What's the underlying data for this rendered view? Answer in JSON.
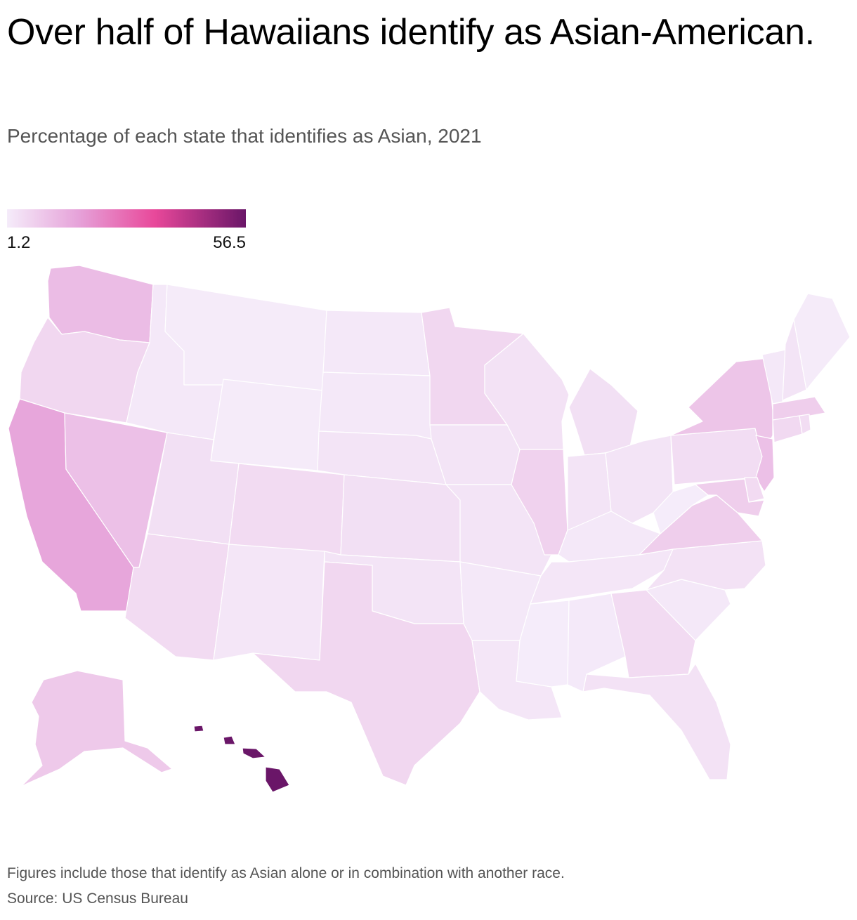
{
  "header": {
    "title": "Over half of Hawaiians identify as Asian-American.",
    "subtitle": "Percentage of each state that identifies as Asian, 2021"
  },
  "legend": {
    "min_label": "1.2",
    "max_label": "56.5",
    "min": 1.2,
    "max": 56.5,
    "color_stops": [
      "#f5ecfa",
      "#e6a2d9",
      "#e8489a",
      "#6a1668"
    ]
  },
  "chart_data": {
    "type": "choropleth",
    "title": "Over half of Hawaiians identify as Asian-American.",
    "subtitle": "Percentage of each state that identifies as Asian, 2021",
    "unit": "percent",
    "range": [
      1.2,
      56.5
    ],
    "states": {
      "WA": 12,
      "OR": 6,
      "CA": 17,
      "NV": 11,
      "ID": 2,
      "MT": 1.5,
      "WY": 1.5,
      "UT": 4,
      "AZ": 5,
      "CO": 5,
      "NM": 2.5,
      "ND": 2,
      "SD": 2,
      "NE": 3,
      "KS": 4,
      "OK": 3,
      "TX": 6,
      "MN": 6,
      "IA": 3,
      "MO": 3,
      "AR": 2,
      "LA": 2.5,
      "WI": 3.5,
      "IL": 7,
      "MI": 4,
      "IN": 3,
      "OH": 3,
      "KY": 2,
      "TN": 2.5,
      "MS": 1.2,
      "AL": 1.8,
      "GA": 5,
      "FL": 3.5,
      "SC": 2,
      "NC": 3.5,
      "VA": 8,
      "WV": 1.2,
      "PA": 4.5,
      "NY": 10,
      "NJ": 11,
      "DE": 5,
      "MD": 8,
      "VT": 2,
      "NH": 3,
      "ME": 1.5,
      "MA": 8,
      "CT": 5.5,
      "RI": 4.5,
      "AK": 9,
      "HI": 56.5
    }
  },
  "footer": {
    "note": "Figures include those that identify as Asian alone or in combination with another race.",
    "source": "Source: US Census Bureau"
  }
}
